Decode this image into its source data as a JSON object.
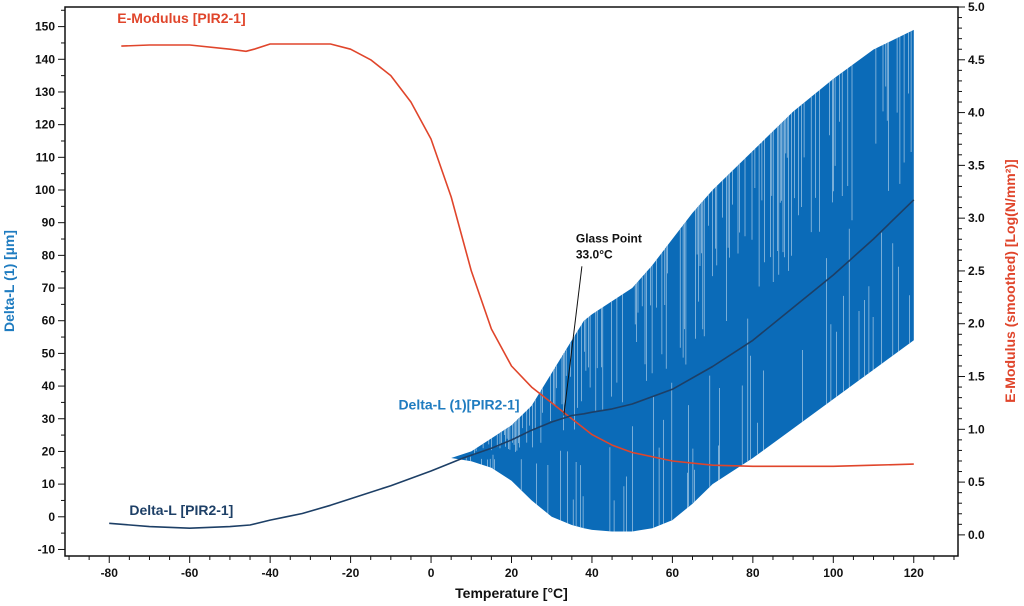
{
  "chart_data": {
    "type": "line",
    "x_axis": {
      "label": "Temperature [°C]",
      "range": [
        -91,
        131
      ],
      "ticks": [
        -80,
        -60,
        -40,
        -20,
        0,
        20,
        40,
        60,
        80,
        100,
        120
      ],
      "tick_labels": [
        "-80",
        "-60",
        "-40",
        "-20",
        "0",
        "20",
        "40",
        "60",
        "80",
        "100",
        "120"
      ]
    },
    "y_axis_left": {
      "label": "Delta-L (1) [µm]",
      "color": "#1f7cc0",
      "range": [
        -12,
        156
      ],
      "ticks": [
        -10,
        0,
        10,
        20,
        30,
        40,
        50,
        60,
        70,
        80,
        90,
        100,
        110,
        120,
        130,
        140,
        150
      ],
      "tick_labels": [
        "-10",
        "0",
        "10",
        "20",
        "30",
        "40",
        "50",
        "60",
        "70",
        "80",
        "90",
        "100",
        "110",
        "120",
        "130",
        "140",
        "150"
      ]
    },
    "y_axis_right": {
      "label": "E-Modulus (smoothed) [Log(N/mm²)]",
      "color": "#e0452b",
      "range": [
        -0.2,
        5.0
      ],
      "ticks": [
        0.0,
        0.5,
        1.0,
        1.5,
        2.0,
        2.5,
        3.0,
        3.5,
        4.0,
        4.5,
        5.0
      ],
      "tick_labels": [
        "0.0",
        "0.5",
        "1.0",
        "1.5",
        "2.0",
        "2.5",
        "3.0",
        "3.5",
        "4.0",
        "4.5",
        "5.0"
      ]
    },
    "series": [
      {
        "name": "Delta-L [PIR2-1]",
        "axis": "left",
        "color": "#1d3f66",
        "x": [
          -80,
          -70,
          -60,
          -50,
          -45,
          -40,
          -36,
          -32,
          -25,
          -20,
          -10,
          0,
          5,
          8,
          15,
          20,
          25,
          30,
          35,
          38,
          40,
          45,
          50,
          60,
          70,
          80,
          90,
          100,
          110,
          120
        ],
        "y": [
          -2,
          -3,
          -3.5,
          -3,
          -2.5,
          -1,
          0,
          1,
          3.5,
          5.5,
          9.5,
          14,
          16.5,
          18,
          21,
          23.5,
          26.5,
          29,
          31,
          31.5,
          32,
          33,
          34.5,
          39,
          46,
          54,
          64,
          74,
          85,
          97
        ]
      },
      {
        "name": "Delta-L (1)[PIR2-1]",
        "axis": "left",
        "color": "#0b6bb8",
        "type": "band",
        "x": [
          5,
          10,
          15,
          20,
          25,
          30,
          35,
          38,
          40,
          45,
          50,
          55,
          60,
          65,
          70,
          80,
          90,
          100,
          110,
          120
        ],
        "upper": [
          18,
          20,
          24,
          28,
          34,
          44,
          54,
          60,
          62,
          66,
          70,
          77,
          85,
          93,
          100,
          112,
          124,
          134,
          143,
          149
        ],
        "lower": [
          18,
          17,
          15,
          11,
          5,
          0,
          -2.5,
          -3.5,
          -4,
          -4.5,
          -4.5,
          -3.5,
          -1,
          4,
          10,
          18,
          27,
          36,
          45,
          54
        ]
      },
      {
        "name": "E-Modulus [PIR2-1]",
        "axis": "right",
        "color": "#e0452b",
        "x": [
          -77,
          -70,
          -60,
          -50,
          -46,
          -44,
          -40,
          -35,
          -30,
          -25,
          -20,
          -15,
          -10,
          -5,
          0,
          5,
          10,
          15,
          20,
          25,
          30,
          35,
          40,
          45,
          50,
          60,
          70,
          80,
          90,
          100,
          110,
          120
        ],
        "y": [
          4.63,
          4.64,
          4.64,
          4.6,
          4.58,
          4.6,
          4.65,
          4.65,
          4.65,
          4.65,
          4.6,
          4.5,
          4.35,
          4.1,
          3.75,
          3.2,
          2.5,
          1.95,
          1.6,
          1.4,
          1.25,
          1.1,
          0.95,
          0.85,
          0.78,
          0.7,
          0.66,
          0.65,
          0.65,
          0.65,
          0.66,
          0.67
        ]
      }
    ],
    "annotations": [
      {
        "text_line1": "Glass Point",
        "text_line2": "33.0°C",
        "x": 33,
        "y": 31
      }
    ],
    "series_labels": {
      "delta_l": "Delta-L [PIR2-1]",
      "delta_l1": "Delta-L (1)[PIR2-1]",
      "emod": "E-Modulus [PIR2-1]"
    },
    "grid": false,
    "legend": "none"
  }
}
